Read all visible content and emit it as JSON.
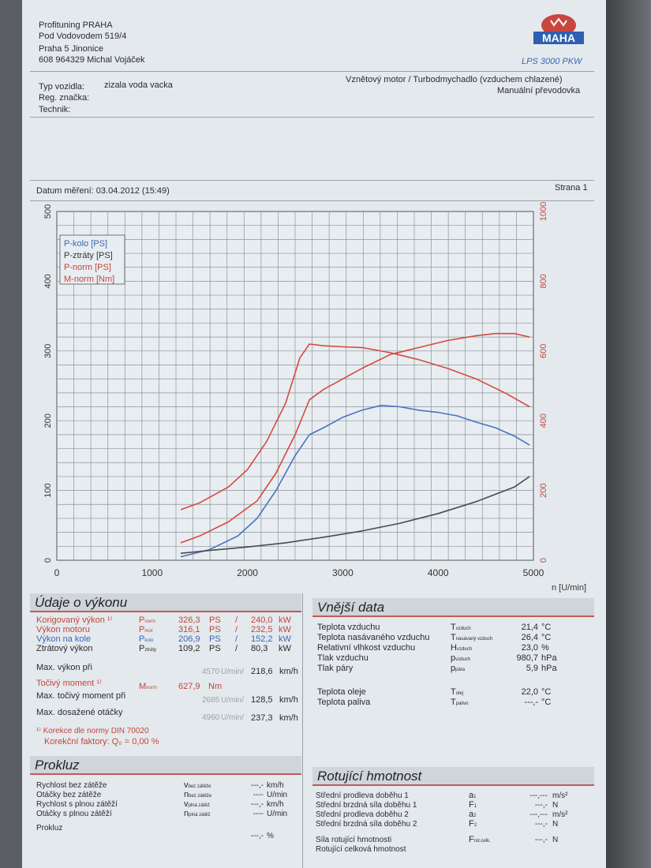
{
  "header": {
    "company_lines": [
      "Profituning PRAHA",
      "Pod Vodovodem 519/4",
      "Praha 5 Jinonice",
      "608 964329 Michal Vojáček"
    ],
    "logo_text": "MAHA",
    "model": "LPS 3000 PKW"
  },
  "vehicle": {
    "type_label": "Typ vozidla:",
    "type_value": "zizala voda vacka",
    "reg_label": "Reg. značka:",
    "tech_label": "Technik:",
    "engine": "Vznětový motor / Turbodmychadlo (vzduchem chlazené)",
    "gearbox": "Manuální převodovka"
  },
  "measure": {
    "date_text": "Datum měření: 03.04.2012 (15:49)",
    "page_text": "Strana 1"
  },
  "chart_data": {
    "type": "line",
    "x_unit_label": "n [U/min]",
    "x_ticks": [
      "0",
      "1000",
      "2000",
      "3000",
      "4000",
      "5000"
    ],
    "left_ticks": [
      "0",
      "100",
      "200",
      "300",
      "400",
      "500"
    ],
    "right_ticks": [
      "0",
      "200",
      "400",
      "600",
      "800",
      "1000"
    ],
    "xlim": [
      0,
      5000
    ],
    "ylim_left": [
      0,
      500
    ],
    "ylim_right": [
      0,
      1000
    ],
    "legend": [
      "P-kolo [PS]",
      "P-ztráty [PS]",
      "P-norm [PS]",
      "M-norm [Nm]"
    ],
    "legend_colors": [
      "#3a66b8",
      "#333333",
      "#c4453c",
      "#c4453c"
    ],
    "series": [
      {
        "name": "P-kolo [PS]",
        "axis": "left",
        "color": "#4a72c0",
        "x": [
          1300,
          1600,
          1900,
          2100,
          2300,
          2500,
          2650,
          2800,
          3000,
          3200,
          3400,
          3600,
          3800,
          4000,
          4200,
          4400,
          4600,
          4800,
          4960
        ],
        "y": [
          5,
          15,
          35,
          60,
          100,
          150,
          180,
          190,
          205,
          215,
          222,
          220,
          215,
          212,
          207,
          198,
          190,
          178,
          165
        ]
      },
      {
        "name": "P-ztráty [PS]",
        "axis": "left",
        "color": "#4a4a4a",
        "x": [
          1300,
          1600,
          2000,
          2400,
          2800,
          3200,
          3600,
          4000,
          4400,
          4800,
          4960
        ],
        "y": [
          10,
          14,
          19,
          25,
          33,
          42,
          53,
          67,
          84,
          105,
          120
        ]
      },
      {
        "name": "P-norm [PS]",
        "axis": "left",
        "color": "#d44a3e",
        "x": [
          1300,
          1500,
          1800,
          2100,
          2300,
          2500,
          2650,
          2800,
          3000,
          3200,
          3500,
          3800,
          4100,
          4400,
          4600,
          4800,
          4960
        ],
        "y": [
          25,
          35,
          55,
          85,
          125,
          180,
          230,
          245,
          260,
          275,
          295,
          305,
          315,
          322,
          325,
          325,
          320
        ]
      },
      {
        "name": "M-norm [Nm]",
        "axis": "right",
        "color": "#d44a3e",
        "x": [
          1300,
          1500,
          1800,
          2000,
          2200,
          2400,
          2550,
          2650,
          2800,
          3000,
          3200,
          3500,
          3800,
          4100,
          4400,
          4700,
          4960
        ],
        "y": [
          145,
          165,
          210,
          260,
          340,
          450,
          580,
          620,
          615,
          612,
          610,
          595,
          575,
          550,
          520,
          480,
          440
        ]
      }
    ]
  },
  "performance": {
    "title": "Údaje o výkonu",
    "rows": [
      {
        "label": "Korigovaný výkon ¹⁾",
        "sym": "P",
        "sub": "norm",
        "v1": "326,3",
        "u1": "PS",
        "sep": "/",
        "v2": "240,0",
        "u2": "kW",
        "color": "red"
      },
      {
        "label": "Výkon motoru",
        "sym": "P",
        "sub": "mot",
        "v1": "316,1",
        "u1": "PS",
        "sep": "/",
        "v2": "232,5",
        "u2": "kW",
        "color": "red"
      },
      {
        "label": "Výkon na kole",
        "sym": "P",
        "sub": "kolo",
        "v1": "206,9",
        "u1": "PS",
        "sep": "/",
        "v2": "152,2",
        "u2": "kW",
        "color": "blue"
      },
      {
        "label": "Ztrátový výkon",
        "sym": "P",
        "sub": "ztráty",
        "v1": "109,2",
        "u1": "PS",
        "sep": "/",
        "v2": "80,3",
        "u2": "kW",
        "color": "dark"
      }
    ],
    "max_power_at": {
      "label": "Max. výkon při",
      "rpm": "4570",
      "rpm_unit": "U/min/",
      "speed": "218,6",
      "speed_unit": "km/h"
    },
    "torque": {
      "label": "Točivý moment ¹⁾",
      "sym": "M",
      "sub": "norm",
      "value": "627,9",
      "unit": "Nm"
    },
    "max_torque_at": {
      "label": "Max. točivý moment při",
      "rpm": "2685",
      "rpm_unit": "U/min/",
      "speed": "128,5",
      "speed_unit": "km/h"
    },
    "max_rpm": {
      "label": "Max. dosažené otáčky",
      "rpm": "4960",
      "rpm_unit": "U/min/",
      "speed": "237,3",
      "speed_unit": "km/h"
    },
    "note1": "¹⁾ Korekce dle normy DIN 70020",
    "note2": "Korekční faktory: Q₀ =   0,00 %"
  },
  "external": {
    "title": "Vnější data",
    "rows": [
      {
        "label": "Teplota vzduchu",
        "sym": "T",
        "sub": "vzduch",
        "value": "21,4",
        "unit": "°C"
      },
      {
        "label": "Teplota nasávaného vzduchu",
        "sym": "T",
        "sub": "nasávaný vzduch",
        "value": "26,4",
        "unit": "°C"
      },
      {
        "label": "Relativní vlhkost vzduchu",
        "sym": "H",
        "sub": "vzduch",
        "value": "23,0",
        "unit": "%"
      },
      {
        "label": "Tlak vzduchu",
        "sym": "p",
        "sub": "vzduch",
        "value": "980,7",
        "unit": "hPa"
      },
      {
        "label": "Tlak páry",
        "sym": "p",
        "sub": "pára",
        "value": "5,9",
        "unit": "hPa"
      },
      {
        "label": "Teplota oleje",
        "sym": "T",
        "sub": "olej",
        "value": "22,0",
        "unit": "°C"
      },
      {
        "label": "Teplota paliva",
        "sym": "T",
        "sub": "palivo",
        "value": "---,-",
        "unit": "°C"
      }
    ]
  },
  "slip": {
    "title": "Prokluz",
    "rows": [
      {
        "label": "Rychlost bez zátěže",
        "sym": "v",
        "sub": "bez zátěže",
        "value": "---,-",
        "unit": "km/h"
      },
      {
        "label": "Otáčky bez zátěže",
        "sym": "n",
        "sub": "bez zátěže",
        "value": "----",
        "unit": "U/min"
      },
      {
        "label": "Rychlost s plnou zátěží",
        "sym": "v",
        "sub": "plná zátěž",
        "value": "---,-",
        "unit": "km/h"
      },
      {
        "label": "Otáčky s plnou zátěží",
        "sym": "n",
        "sub": "plná zátěž",
        "value": "----",
        "unit": "U/min"
      },
      {
        "label": "Prokluz",
        "sym": "",
        "sub": "",
        "value": "---,-",
        "unit": "%"
      }
    ]
  },
  "rotating": {
    "title": "Rotující hmotnost",
    "rows": [
      {
        "label": "Střední prodleva doběhu 1",
        "sym": "a",
        "sub": "1",
        "value": "---,---",
        "unit": "m/s²"
      },
      {
        "label": "Střední brzdná síla doběhu 1",
        "sym": "F",
        "sub": "1",
        "value": "---,-",
        "unit": "N"
      },
      {
        "label": "Střední prodleva doběhu 2",
        "sym": "a",
        "sub": "2",
        "value": "---,---",
        "unit": "m/s²"
      },
      {
        "label": "Střední brzdná síla doběhu 2",
        "sym": "F",
        "sub": "2",
        "value": "---,-",
        "unit": "N"
      },
      {
        "label": "Síla rotující hmotnosti",
        "sym": "F",
        "sub": "rot.celk.",
        "value": "---,-",
        "unit": "N"
      },
      {
        "label": "Rotující celková hmotnost",
        "sym": "",
        "sub": "",
        "value": "",
        "unit": ""
      }
    ]
  }
}
